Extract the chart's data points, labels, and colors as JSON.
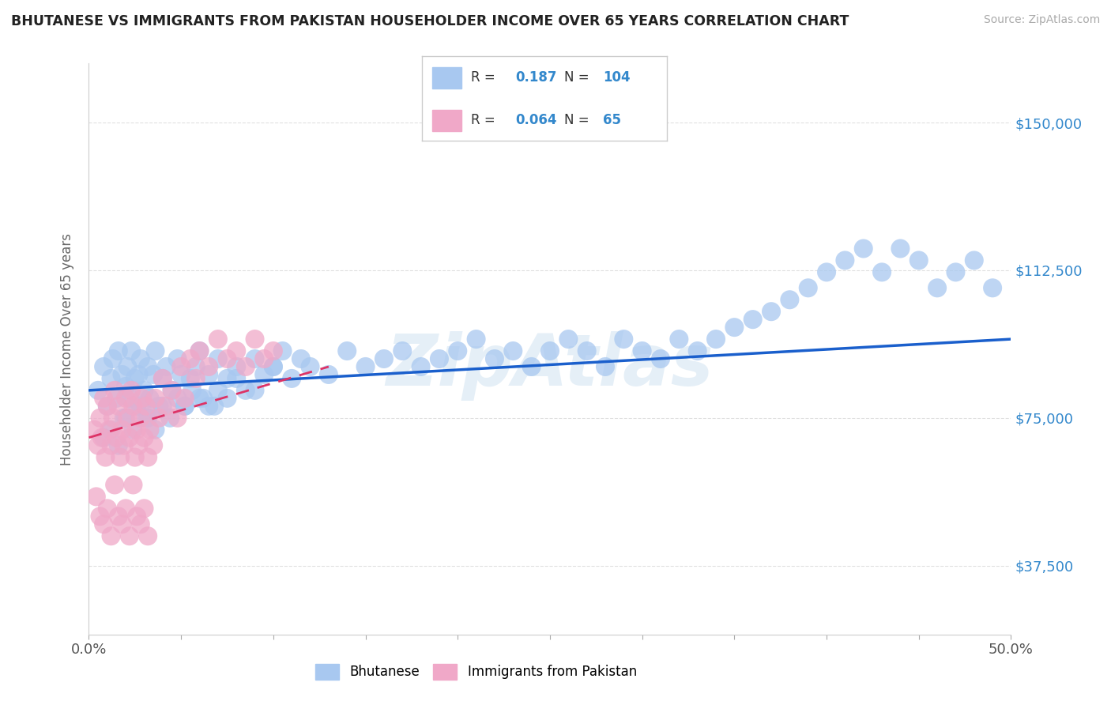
{
  "title": "BHUTANESE VS IMMIGRANTS FROM PAKISTAN HOUSEHOLDER INCOME OVER 65 YEARS CORRELATION CHART",
  "source": "Source: ZipAtlas.com",
  "ylabel": "Householder Income Over 65 years",
  "xlim": [
    0.0,
    0.5
  ],
  "ylim": [
    20000,
    165000
  ],
  "yticks": [
    37500,
    75000,
    112500,
    150000
  ],
  "yticklabels": [
    "$37,500",
    "$75,000",
    "$112,500",
    "$150,000"
  ],
  "bhutanese_R": 0.187,
  "bhutanese_N": 104,
  "pakistan_R": 0.064,
  "pakistan_N": 65,
  "bhutanese_color": "#a8c8f0",
  "pakistan_color": "#f0a8c8",
  "bhutanese_line_color": "#1a5fcc",
  "pakistan_line_color": "#dd3366",
  "watermark": "ZipAtlas",
  "legend_label_1": "Bhutanese",
  "legend_label_2": "Immigrants from Pakistan",
  "bhutanese_x": [
    0.005,
    0.008,
    0.01,
    0.012,
    0.013,
    0.015,
    0.016,
    0.018,
    0.019,
    0.02,
    0.021,
    0.022,
    0.023,
    0.025,
    0.026,
    0.027,
    0.028,
    0.03,
    0.031,
    0.032,
    0.033,
    0.035,
    0.036,
    0.038,
    0.04,
    0.042,
    0.045,
    0.048,
    0.05,
    0.052,
    0.055,
    0.058,
    0.06,
    0.062,
    0.065,
    0.068,
    0.07,
    0.075,
    0.08,
    0.085,
    0.09,
    0.095,
    0.1,
    0.105,
    0.11,
    0.115,
    0.12,
    0.13,
    0.14,
    0.15,
    0.16,
    0.17,
    0.18,
    0.19,
    0.2,
    0.21,
    0.22,
    0.23,
    0.24,
    0.25,
    0.26,
    0.27,
    0.28,
    0.29,
    0.3,
    0.31,
    0.32,
    0.33,
    0.34,
    0.35,
    0.36,
    0.37,
    0.38,
    0.39,
    0.4,
    0.41,
    0.42,
    0.43,
    0.44,
    0.45,
    0.46,
    0.47,
    0.48,
    0.49,
    0.008,
    0.012,
    0.016,
    0.02,
    0.024,
    0.028,
    0.032,
    0.036,
    0.04,
    0.044,
    0.048,
    0.052,
    0.056,
    0.06,
    0.065,
    0.07,
    0.075,
    0.08,
    0.09,
    0.1
  ],
  "bhutanese_y": [
    82000,
    88000,
    78000,
    85000,
    90000,
    80000,
    92000,
    86000,
    75000,
    83000,
    88000,
    80000,
    92000,
    85000,
    78000,
    86000,
    90000,
    82000,
    75000,
    88000,
    80000,
    86000,
    92000,
    78000,
    85000,
    88000,
    82000,
    90000,
    86000,
    78000,
    85000,
    88000,
    92000,
    80000,
    86000,
    78000,
    90000,
    85000,
    88000,
    82000,
    90000,
    86000,
    88000,
    92000,
    85000,
    90000,
    88000,
    86000,
    92000,
    88000,
    90000,
    92000,
    88000,
    90000,
    92000,
    95000,
    90000,
    92000,
    88000,
    92000,
    95000,
    92000,
    88000,
    95000,
    92000,
    90000,
    95000,
    92000,
    95000,
    98000,
    100000,
    102000,
    105000,
    108000,
    112000,
    115000,
    118000,
    112000,
    118000,
    115000,
    108000,
    112000,
    115000,
    108000,
    70000,
    72000,
    68000,
    75000,
    72000,
    78000,
    75000,
    72000,
    78000,
    75000,
    80000,
    78000,
    82000,
    80000,
    78000,
    82000,
    80000,
    85000,
    82000,
    88000
  ],
  "pakistan_x": [
    0.003,
    0.005,
    0.006,
    0.007,
    0.008,
    0.009,
    0.01,
    0.011,
    0.012,
    0.013,
    0.014,
    0.015,
    0.016,
    0.017,
    0.018,
    0.019,
    0.02,
    0.021,
    0.022,
    0.023,
    0.024,
    0.025,
    0.026,
    0.027,
    0.028,
    0.029,
    0.03,
    0.031,
    0.032,
    0.033,
    0.035,
    0.036,
    0.038,
    0.04,
    0.042,
    0.045,
    0.048,
    0.05,
    0.052,
    0.055,
    0.058,
    0.06,
    0.065,
    0.07,
    0.075,
    0.08,
    0.085,
    0.09,
    0.095,
    0.1,
    0.004,
    0.006,
    0.008,
    0.01,
    0.012,
    0.014,
    0.016,
    0.018,
    0.02,
    0.022,
    0.024,
    0.026,
    0.028,
    0.03,
    0.032
  ],
  "pakistan_y": [
    72000,
    68000,
    75000,
    70000,
    80000,
    65000,
    78000,
    72000,
    68000,
    75000,
    82000,
    70000,
    78000,
    65000,
    72000,
    68000,
    80000,
    75000,
    70000,
    82000,
    78000,
    65000,
    72000,
    68000,
    75000,
    80000,
    70000,
    78000,
    65000,
    72000,
    68000,
    80000,
    75000,
    85000,
    78000,
    82000,
    75000,
    88000,
    80000,
    90000,
    85000,
    92000,
    88000,
    95000,
    90000,
    92000,
    88000,
    95000,
    90000,
    92000,
    55000,
    50000,
    48000,
    52000,
    45000,
    58000,
    50000,
    48000,
    52000,
    45000,
    58000,
    50000,
    48000,
    52000,
    45000
  ]
}
